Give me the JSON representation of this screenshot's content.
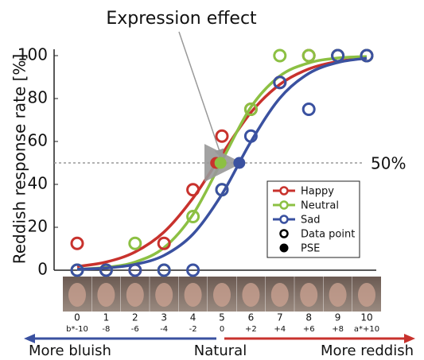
{
  "chart_data": {
    "type": "line",
    "annotation": "Expression effect",
    "y_label": "Reddish response rate [%]",
    "categories": [
      "0",
      "1",
      "2",
      "3",
      "4",
      "5",
      "6",
      "7",
      "8",
      "9",
      "10"
    ],
    "category_sublabels": [
      "b*-10",
      "-8",
      "-6",
      "-4",
      "-2",
      "0",
      "+2",
      "+4",
      "+6",
      "+8",
      "a*+10"
    ],
    "x_direction_labels": [
      "More bluish",
      "Natural",
      "More reddish"
    ],
    "ylim": [
      0,
      100
    ],
    "yticks": [
      0,
      20,
      40,
      60,
      80,
      100
    ],
    "reference_line": {
      "value": 50,
      "label": "50%"
    },
    "series": [
      {
        "name": "Happy",
        "color": "#c8322d",
        "values": [
          12.5,
          0,
          0,
          12.5,
          37.5,
          62.5,
          75,
          87.5,
          100,
          100,
          100
        ],
        "curve": [
          1.7,
          3.8,
          8.5,
          17.8,
          33.6,
          54,
          73.5,
          86.6,
          93.8,
          97.3,
          98.8
        ],
        "pse": {
          "x": 4.8,
          "y": 50
        }
      },
      {
        "name": "Neutral",
        "color": "#8cc043",
        "values": [
          0,
          0,
          12.5,
          0,
          25,
          37.5,
          75,
          100,
          100,
          100,
          100
        ],
        "curve": [
          0.4,
          1.3,
          3.8,
          10.5,
          26,
          51,
          76,
          90.5,
          96.6,
          98.9,
          99.6
        ],
        "pse": {
          "x": 4.95,
          "y": 50
        }
      },
      {
        "name": "Sad",
        "color": "#3a51a0",
        "values": [
          0,
          0,
          0,
          0,
          0,
          37.5,
          62.5,
          87.5,
          75,
          100,
          100
        ],
        "curve": [
          0.4,
          1,
          2.7,
          6.9,
          16.8,
          35.4,
          59.9,
          80.2,
          91.7,
          96.8,
          98.8
        ],
        "pse": {
          "x": 5.6,
          "y": 50
        }
      }
    ],
    "legend_markers": [
      "Data point",
      "PSE"
    ]
  }
}
